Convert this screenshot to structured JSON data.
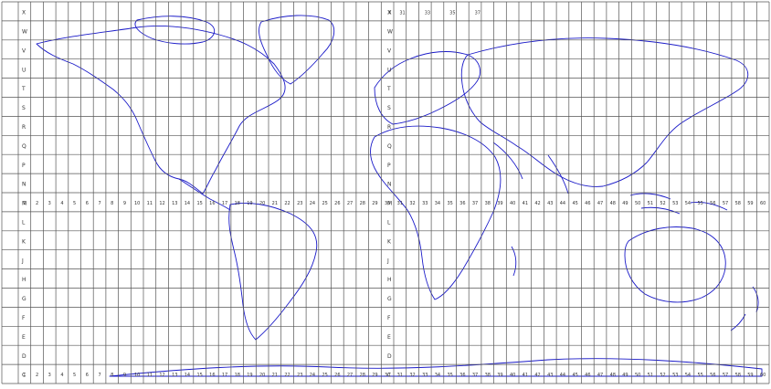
{
  "map": {
    "type": "UTM/MGRS world grid zone map",
    "zones": [
      "1",
      "2",
      "3",
      "4",
      "5",
      "6",
      "7",
      "8",
      "9",
      "10",
      "11",
      "12",
      "13",
      "14",
      "15",
      "16",
      "17",
      "18",
      "19",
      "20",
      "21",
      "22",
      "23",
      "24",
      "25",
      "26",
      "27",
      "28",
      "29",
      "30",
      "31",
      "32",
      "33",
      "34",
      "35",
      "36",
      "37",
      "38",
      "39",
      "40",
      "41",
      "42",
      "43",
      "44",
      "45",
      "46",
      "47",
      "48",
      "49",
      "50",
      "51",
      "52",
      "53",
      "54",
      "55",
      "56",
      "57",
      "58",
      "59",
      "60"
    ],
    "latitude_bands_north": [
      "X",
      "W",
      "V",
      "U",
      "T",
      "S",
      "R",
      "Q",
      "P",
      "N"
    ],
    "latitude_bands_south": [
      "M",
      "L",
      "K",
      "J",
      "H",
      "G",
      "F",
      "E",
      "D",
      "C"
    ],
    "top_label_row": [
      "X",
      "31",
      "33",
      "35",
      "37"
    ],
    "equator_label_start": "N",
    "colors": {
      "grid": "#555555",
      "coastline": "#1a1ac8",
      "background": "#ffffff"
    }
  }
}
